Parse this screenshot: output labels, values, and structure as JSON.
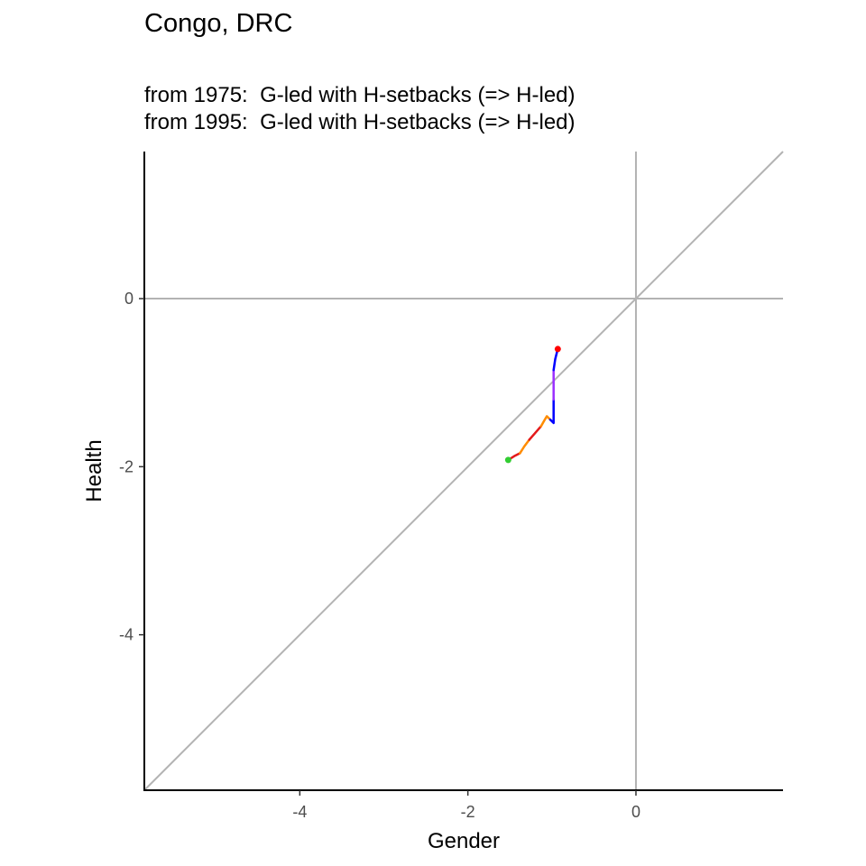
{
  "chart_data": {
    "type": "line",
    "title": "Congo, DRC",
    "subtitle_lines": [
      "from 1975:  G-led with H-setbacks (=> H-led)",
      "from 1995:  G-led with H-setbacks (=> H-led)"
    ],
    "xlabel": "Gender",
    "ylabel": "Health",
    "xlim": [
      -5.85,
      1.75
    ],
    "ylim": [
      -5.85,
      1.75
    ],
    "x_ticks": [
      -4,
      -2,
      0
    ],
    "y_ticks": [
      0,
      -2,
      -4
    ],
    "reference_lines": {
      "hline_y": 0,
      "vline_x": 0,
      "diagonal_slope": 1,
      "color": "#b3b3b3"
    },
    "path_segments": [
      {
        "x": [
          -1.52,
          -1.44,
          -1.38
        ],
        "y": [
          -1.92,
          -1.87,
          -1.84
        ],
        "color": "#e41a1c"
      },
      {
        "x": [
          -1.38,
          -1.33,
          -1.27
        ],
        "y": [
          -1.84,
          -1.76,
          -1.68
        ],
        "color": "#ff8c00"
      },
      {
        "x": [
          -1.27,
          -1.2,
          -1.13
        ],
        "y": [
          -1.68,
          -1.6,
          -1.52
        ],
        "color": "#e41a1c"
      },
      {
        "x": [
          -1.13,
          -1.09,
          -1.06,
          -1.02
        ],
        "y": [
          -1.52,
          -1.45,
          -1.4,
          -1.44
        ],
        "color": "#ff8c00"
      },
      {
        "x": [
          -1.02,
          -0.98,
          -0.98
        ],
        "y": [
          -1.44,
          -1.48,
          -1.2
        ],
        "color": "#0000ff"
      },
      {
        "x": [
          -0.98,
          -0.98,
          -0.98
        ],
        "y": [
          -1.2,
          -1.05,
          -0.85
        ],
        "color": "#9b30ff"
      },
      {
        "x": [
          -0.98,
          -0.96,
          -0.93
        ],
        "y": [
          -0.85,
          -0.72,
          -0.6
        ],
        "color": "#0000ff"
      }
    ],
    "start_point": {
      "x": -1.52,
      "y": -1.92,
      "color": "#32cd32"
    },
    "end_point": {
      "x": -0.93,
      "y": -0.6,
      "color": "#ff0000"
    }
  }
}
